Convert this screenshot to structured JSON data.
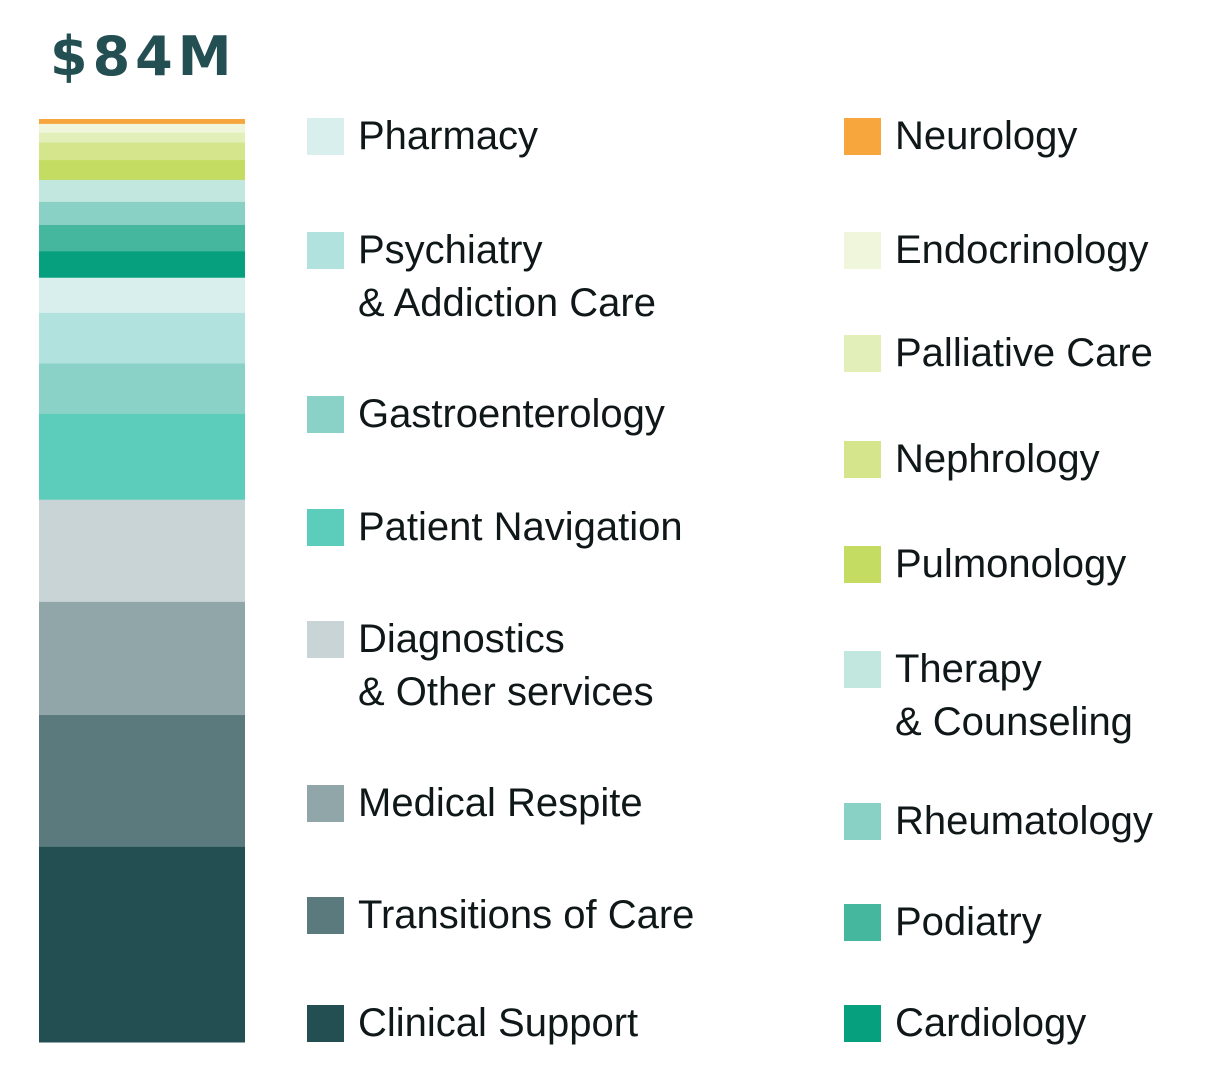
{
  "chart_data": {
    "type": "bar",
    "subtype": "stacked-single-column",
    "title": "$84M",
    "total_millions": 84,
    "legend_placement": "right, two columns",
    "grid": false,
    "series": [
      {
        "name": "Clinical Support",
        "value": 17.8,
        "color": "#234e52"
      },
      {
        "name": "Transitions of Care",
        "value": 12.0,
        "color": "#5a7a7d"
      },
      {
        "name": "Medical Respite",
        "value": 10.3,
        "color": "#91a6a9"
      },
      {
        "name": "Diagnostics\n& Other services",
        "value": 9.3,
        "color": "#c9d4d6"
      },
      {
        "name": "Patient Navigation",
        "value": 7.8,
        "color": "#5dcdbb"
      },
      {
        "name": "Gastroenterology",
        "value": 4.6,
        "color": "#8ad2c7"
      },
      {
        "name": "Psychiatry\n& Addiction Care",
        "value": 4.6,
        "color": "#b1e2dd"
      },
      {
        "name": "Pharmacy",
        "value": 3.2,
        "color": "#d9efee"
      },
      {
        "name": "Cardiology",
        "value": 2.4,
        "color": "#07a07f"
      },
      {
        "name": "Podiatry",
        "value": 2.4,
        "color": "#45b79e"
      },
      {
        "name": "Rheumatology",
        "value": 2.1,
        "color": "#89d1c4"
      },
      {
        "name": "Therapy\n& Counseling",
        "value": 2.0,
        "color": "#c2e7df"
      },
      {
        "name": "Pulmonology",
        "value": 1.8,
        "color": "#c4dc62"
      },
      {
        "name": "Nephrology",
        "value": 1.6,
        "color": "#d4e58c"
      },
      {
        "name": "Palliative Care",
        "value": 0.9,
        "color": "#e2efb8"
      },
      {
        "name": "Endocrinology",
        "value": 0.8,
        "color": "#f0f6dc"
      },
      {
        "name": "Neurology",
        "value": 0.4,
        "color": "#f6a63c"
      }
    ],
    "legend_columns": [
      [
        "Pharmacy",
        "Psychiatry\n& Addiction Care",
        "Gastroenterology",
        "Patient Navigation",
        "Diagnostics\n& Other services",
        "Medical Respite",
        "Transitions of Care",
        "Clinical Support"
      ],
      [
        "Neurology",
        "Endocrinology",
        "Palliative Care",
        "Nephrology",
        "Pulmonology",
        "Therapy\n& Counseling",
        "Rheumatology",
        "Podiatry",
        "Cardiology"
      ]
    ]
  }
}
